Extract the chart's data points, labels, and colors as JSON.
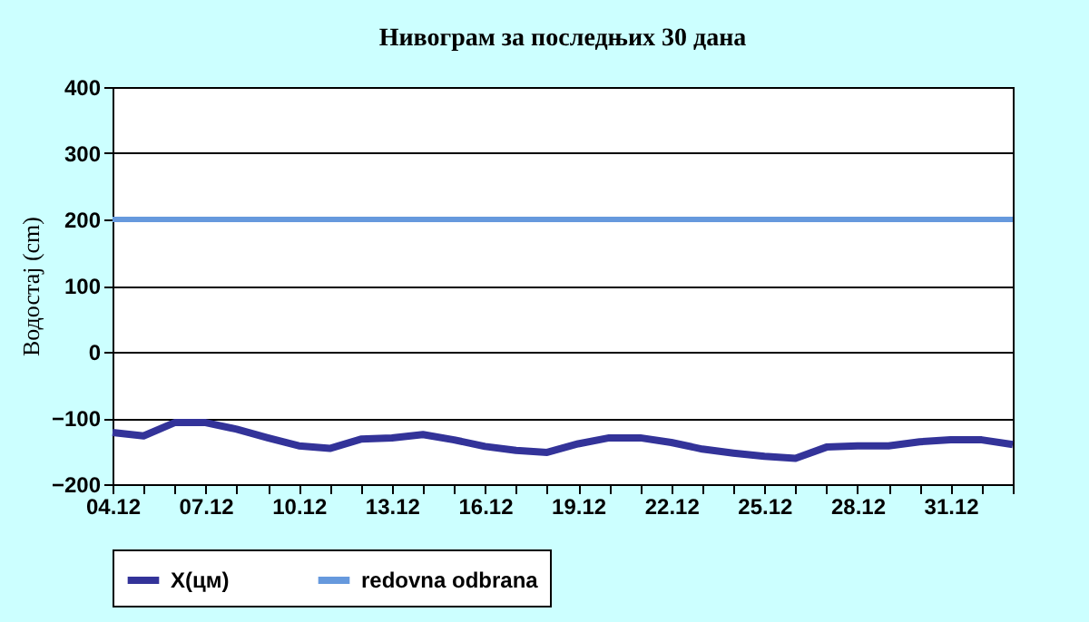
{
  "chart_data": {
    "type": "line",
    "title": "Нивограм за последњих 30 дана",
    "ylabel": "Водостај (cm)",
    "categories": [
      "04.12",
      null,
      null,
      "07.12",
      null,
      null,
      "10.12",
      null,
      null,
      "13.12",
      null,
      null,
      "16.12",
      null,
      null,
      "19.12",
      null,
      null,
      "22.12",
      null,
      null,
      "25.12",
      null,
      null,
      "28.12",
      null,
      null,
      "31.12",
      null,
      null
    ],
    "series": [
      {
        "name": "X(цм)",
        "color": "#333399",
        "values": [
          -122,
          -127,
          -107,
          -107,
          -117,
          -130,
          -142,
          -146,
          -132,
          -130,
          -125,
          -133,
          -143,
          -149,
          -152,
          -139,
          -130,
          -130,
          -137,
          -147,
          -153,
          -158,
          -161,
          -144,
          -142,
          -142,
          -136,
          -133,
          -133,
          -140
        ]
      }
    ],
    "ref_lines": [
      {
        "axis": "y",
        "value": 200,
        "label": "redovna odbrana",
        "color": "#6699dd"
      }
    ],
    "ylim": [
      -200,
      400
    ],
    "yticks": [
      -200,
      -100,
      0,
      100,
      200,
      300,
      400
    ],
    "grid": "y",
    "legend": "bottom",
    "marker": "none",
    "line_style": "solid"
  }
}
